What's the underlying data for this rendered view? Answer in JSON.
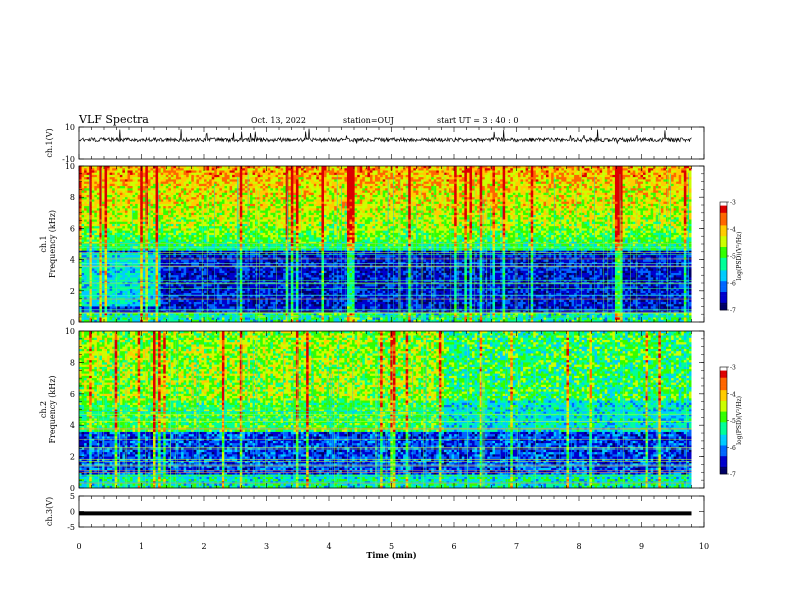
{
  "header": {
    "title": "VLF Spectra",
    "date": "Oct. 13, 2022",
    "station": "station=OUJ",
    "start": "start  UT =   3  : 40 : 0"
  },
  "colors": {
    "axis": "#000000",
    "colormap": [
      "#000066",
      "#0000cc",
      "#0066ff",
      "#00ccff",
      "#00ff99",
      "#33ff00",
      "#ccff00",
      "#ffcc00",
      "#ff6600",
      "#dd0000",
      "#ffffff"
    ]
  },
  "chart_data": [
    {
      "type": "line",
      "panel": "ch1-waveform",
      "ylabel": "ch.1(V)",
      "ylim": [
        -10,
        10
      ],
      "yticks": [
        "10",
        "-10"
      ],
      "x": [
        0,
        10
      ],
      "baseline_v": 2
    },
    {
      "type": "heatmap",
      "panel": "ch1-spectrogram",
      "ylabel": "ch.1\nFrequency (kHz)",
      "ylabel_lines": [
        "ch.1",
        "Frequency  (kHz)"
      ],
      "ylim": [
        0,
        10
      ],
      "yticks": [
        "0",
        "2",
        "4",
        "6",
        "8",
        "10"
      ],
      "xlim": [
        0,
        10
      ],
      "colorbar": {
        "label": "log(PSD)(V²/Hz)",
        "range": [
          -7,
          -3
        ],
        "ticks": [
          "-3",
          "-4",
          "-5",
          "-6",
          "-7"
        ]
      }
    },
    {
      "type": "heatmap",
      "panel": "ch2-spectrogram",
      "ylabel_lines": [
        "ch.2",
        "Frequency  (kHz)"
      ],
      "ylim": [
        0,
        10
      ],
      "yticks": [
        "0",
        "2",
        "4",
        "6",
        "8",
        "10"
      ],
      "xlim": [
        0,
        10
      ],
      "colorbar": {
        "label": "log(PSD)(V²/Hz)",
        "range": [
          -7,
          -3
        ],
        "ticks": [
          "-3",
          "-4",
          "-5",
          "-6",
          "-7"
        ]
      }
    },
    {
      "type": "line",
      "panel": "ch3-waveform",
      "ylabel": "ch.3(V)",
      "ylim": [
        -5,
        5
      ],
      "yticks": [
        "5",
        "0",
        "-5"
      ],
      "x": [
        0,
        9.8
      ],
      "y": [
        -0.6,
        -0.6
      ]
    }
  ],
  "xaxis": {
    "label": "Time  (min)",
    "ticks": [
      "0",
      "1",
      "2",
      "3",
      "4",
      "5",
      "6",
      "7",
      "8",
      "9",
      "10"
    ]
  }
}
